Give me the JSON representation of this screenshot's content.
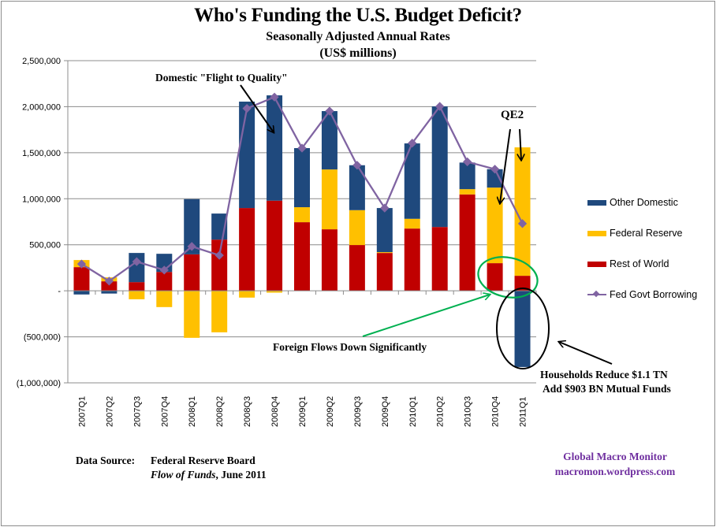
{
  "chart_data": {
    "type": "bar",
    "stacked": true,
    "title": "Who's Funding the U.S. Budget Deficit?",
    "subtitle": "Seasonally Adjusted Annual Rates",
    "units": "(US$ millions)",
    "xlabel": "",
    "ylabel": "",
    "ylim": [
      -1000000,
      2500000
    ],
    "yticks": [
      2500000,
      2000000,
      1500000,
      1000000,
      500000,
      0,
      -500000,
      -1000000
    ],
    "ytick_labels": [
      "2,500,000",
      "2,000,000",
      "1,500,000",
      "1,000,000",
      "500,000",
      "-",
      "(500,000)",
      "(1,000,000)"
    ],
    "grid": true,
    "legend_position": "right",
    "categories": [
      "2007Q1",
      "2007Q2",
      "2007Q3",
      "2007Q4",
      "2008Q1",
      "2008Q2",
      "2008Q3",
      "2008Q4",
      "2009Q1",
      "2009Q2",
      "2009Q3",
      "2009Q4",
      "2010Q1",
      "2010Q2",
      "2010Q3",
      "2010Q4",
      "2011Q1"
    ],
    "series": [
      {
        "name": "Rest of World",
        "type": "bar",
        "color": "#c00000",
        "values": [
          257000,
          103000,
          94000,
          205000,
          396000,
          556000,
          899000,
          979000,
          745000,
          668000,
          497000,
          411000,
          676000,
          693000,
          1047000,
          300000,
          163000
        ]
      },
      {
        "name": "Federal Reserve",
        "type": "bar",
        "color": "#ffc000",
        "values": [
          77000,
          43000,
          -92000,
          -177000,
          -511000,
          -451000,
          -74000,
          -20000,
          163000,
          650000,
          379000,
          9000,
          106000,
          0,
          57000,
          821000,
          1395000
        ]
      },
      {
        "name": "Other Domestic",
        "type": "bar",
        "color": "#1f497d",
        "values": [
          -40000,
          -30000,
          317000,
          197000,
          600000,
          283000,
          1156000,
          1144000,
          642000,
          634000,
          488000,
          479000,
          819000,
          1310000,
          289000,
          200000,
          -828000
        ]
      },
      {
        "name": "Fed Govt Borrowing",
        "type": "line",
        "color": "#8064a2",
        "values": [
          291000,
          105000,
          317000,
          225000,
          482000,
          385000,
          1981000,
          2104000,
          1550000,
          1952000,
          1364000,
          899000,
          1604000,
          2003000,
          1401000,
          1321000,
          730000
        ]
      }
    ],
    "legend": [
      "Other Domestic",
      "Federal Reserve",
      "Rest of World",
      "Fed Govt Borrowing"
    ],
    "annotations": [
      {
        "text": "Domestic \"Flight to Quality\"",
        "points_to": "2008Q4"
      },
      {
        "text": "QE2",
        "points_to": [
          "2010Q4",
          "2011Q1"
        ]
      },
      {
        "text": "Foreign Flows Down Significantly",
        "points_to": "2010Q4"
      },
      {
        "text": "Households Reduce $1.1 TN",
        "points_to": "2011Q1"
      },
      {
        "text": "Add $903 BN Mutual Funds",
        "points_to": "2011Q1"
      }
    ]
  },
  "source": {
    "label": "Data Source:",
    "line1": "Federal Reserve Board",
    "line2_italic": "Flow of Funds",
    "line2_rest": ", June 2011"
  },
  "credit": {
    "name": "Global Macro Monitor",
    "url": "macromon.wordpress.com"
  },
  "colors": {
    "other_domestic": "#1f497d",
    "federal_reserve": "#ffc000",
    "rest_of_world": "#c00000",
    "fed_govt_borrowing": "#8064a2",
    "annotation_green": "#00b050",
    "credit_purple": "#7030a0"
  }
}
